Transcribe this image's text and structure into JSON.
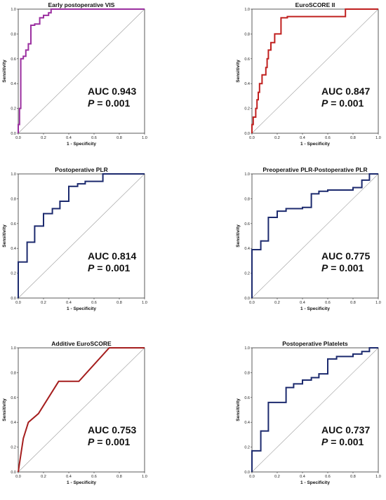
{
  "chart_data": [
    {
      "type": "line",
      "title": "Early postoperative VIS",
      "xlabel": "1 - Specificity",
      "ylabel": "Sensitivity",
      "xlim": [
        0,
        1
      ],
      "ylim": [
        0,
        1
      ],
      "ticks": [
        "0.0",
        "0.2",
        "0.4",
        "0.6",
        "0.8",
        "1.0"
      ],
      "auc_text": "AUC 0.943",
      "p_symbol": "P",
      "p_value_text": " = 0.001",
      "color": "#9b2fa0",
      "x": [
        0,
        0,
        0.01,
        0.01,
        0.02,
        0.02,
        0.04,
        0.04,
        0.06,
        0.06,
        0.08,
        0.08,
        0.1,
        0.1,
        0.13,
        0.13,
        0.17,
        0.17,
        0.2,
        0.2,
        0.24,
        0.24,
        0.26,
        0.26,
        0.5,
        1.0
      ],
      "y": [
        0,
        0.07,
        0.07,
        0.2,
        0.2,
        0.6,
        0.6,
        0.62,
        0.62,
        0.67,
        0.67,
        0.72,
        0.72,
        0.87,
        0.87,
        0.88,
        0.88,
        0.93,
        0.93,
        0.95,
        0.95,
        0.97,
        0.97,
        1.0,
        1.0,
        1.0
      ]
    },
    {
      "type": "line",
      "title": "EuroSCORE II",
      "xlabel": "1 - Specificity",
      "ylabel": "Sensitivity",
      "xlim": [
        0,
        1
      ],
      "ylim": [
        0,
        1
      ],
      "ticks": [
        "0.0",
        "0.2",
        "0.4",
        "0.6",
        "0.8",
        "1.0"
      ],
      "auc_text": "AUC 0.847",
      "p_symbol": "P",
      "p_value_text": " = 0.001",
      "color": "#c0201f",
      "x": [
        0,
        0,
        0.01,
        0.01,
        0.03,
        0.03,
        0.04,
        0.04,
        0.05,
        0.05,
        0.06,
        0.06,
        0.08,
        0.08,
        0.11,
        0.11,
        0.12,
        0.12,
        0.13,
        0.13,
        0.15,
        0.15,
        0.18,
        0.18,
        0.23,
        0.23,
        0.28,
        0.28,
        0.74,
        0.74,
        1.0
      ],
      "y": [
        0,
        0.07,
        0.07,
        0.13,
        0.13,
        0.2,
        0.2,
        0.27,
        0.27,
        0.33,
        0.33,
        0.4,
        0.4,
        0.47,
        0.47,
        0.53,
        0.53,
        0.6,
        0.6,
        0.67,
        0.67,
        0.73,
        0.73,
        0.8,
        0.8,
        0.93,
        0.93,
        0.94,
        0.94,
        1.0,
        1.0
      ]
    },
    {
      "type": "line",
      "title": "Postoperative PLR",
      "xlabel": "1 - Specificity",
      "ylabel": "Sensitivity",
      "xlim": [
        0,
        1
      ],
      "ylim": [
        0,
        1
      ],
      "ticks": [
        "0.0",
        "0.2",
        "0.4",
        "0.6",
        "0.8",
        "1.0"
      ],
      "auc_text": "AUC 0.814",
      "p_symbol": "P",
      "p_value_text": " = 0.001",
      "color": "#1c2a6e",
      "x": [
        0,
        0,
        0.07,
        0.07,
        0.13,
        0.13,
        0.2,
        0.2,
        0.27,
        0.27,
        0.33,
        0.33,
        0.4,
        0.4,
        0.47,
        0.47,
        0.53,
        0.53,
        0.67,
        0.67,
        1.0
      ],
      "y": [
        0,
        0.29,
        0.29,
        0.45,
        0.45,
        0.58,
        0.58,
        0.68,
        0.68,
        0.72,
        0.72,
        0.78,
        0.78,
        0.9,
        0.9,
        0.92,
        0.92,
        0.94,
        0.94,
        1.0,
        1.0
      ]
    },
    {
      "type": "line",
      "title": "Preoperative PLR-Postoperative PLR",
      "xlabel": "1 - Specificity",
      "ylabel": "Sensitivity",
      "xlim": [
        0,
        1
      ],
      "ylim": [
        0,
        1
      ],
      "ticks": [
        "0.0",
        "0.2",
        "0.4",
        "0.6",
        "0.8",
        "1.0"
      ],
      "auc_text": "AUC 0.775",
      "p_symbol": "P",
      "p_value_text": " = 0.001",
      "color": "#1c2a6e",
      "x": [
        0,
        0,
        0.07,
        0.07,
        0.13,
        0.13,
        0.2,
        0.2,
        0.27,
        0.27,
        0.4,
        0.4,
        0.47,
        0.47,
        0.53,
        0.53,
        0.6,
        0.6,
        0.8,
        0.8,
        0.87,
        0.87,
        0.93,
        0.93,
        1.0
      ],
      "y": [
        0,
        0.39,
        0.39,
        0.46,
        0.46,
        0.65,
        0.65,
        0.7,
        0.7,
        0.72,
        0.72,
        0.73,
        0.73,
        0.84,
        0.84,
        0.86,
        0.86,
        0.87,
        0.87,
        0.89,
        0.89,
        0.95,
        0.95,
        1.0,
        1.0
      ]
    },
    {
      "type": "line",
      "title": "Additive EuroSCORE",
      "xlabel": "1 - Specificity",
      "ylabel": "Sensitivity",
      "xlim": [
        0,
        1
      ],
      "ylim": [
        0,
        1
      ],
      "ticks": [
        "0.0",
        "0.2",
        "0.4",
        "0.6",
        "0.8",
        "1.0"
      ],
      "auc_text": "AUC 0.753",
      "p_symbol": "P",
      "p_value_text": " = 0.001",
      "color": "#a51e1e",
      "x": [
        0,
        0.01,
        0.04,
        0.08,
        0.16,
        0.32,
        0.48,
        0.72,
        1.0
      ],
      "y": [
        0,
        0.07,
        0.27,
        0.4,
        0.47,
        0.73,
        0.73,
        1.0,
        1.0
      ]
    },
    {
      "type": "line",
      "title": "Postoperative Platelets",
      "xlabel": "1 - Specificity",
      "ylabel": "Sensitivity",
      "xlim": [
        0,
        1
      ],
      "ylim": [
        0,
        1
      ],
      "ticks": [
        "0.0",
        "0.2",
        "0.4",
        "0.6",
        "0.8",
        "1.0"
      ],
      "auc_text": "AUC 0.737",
      "p_symbol": "P",
      "p_value_text": " = 0.001",
      "color": "#1c2a6e",
      "x": [
        0,
        0,
        0.07,
        0.07,
        0.13,
        0.13,
        0.27,
        0.27,
        0.33,
        0.33,
        0.4,
        0.4,
        0.47,
        0.47,
        0.53,
        0.53,
        0.6,
        0.6,
        0.67,
        0.67,
        0.8,
        0.8,
        0.87,
        0.87,
        0.93,
        0.93,
        1.0
      ],
      "y": [
        0,
        0.17,
        0.17,
        0.33,
        0.33,
        0.56,
        0.56,
        0.68,
        0.68,
        0.71,
        0.71,
        0.74,
        0.74,
        0.76,
        0.76,
        0.79,
        0.79,
        0.91,
        0.91,
        0.93,
        0.93,
        0.95,
        0.95,
        0.97,
        0.97,
        1.0,
        1.0
      ]
    }
  ]
}
